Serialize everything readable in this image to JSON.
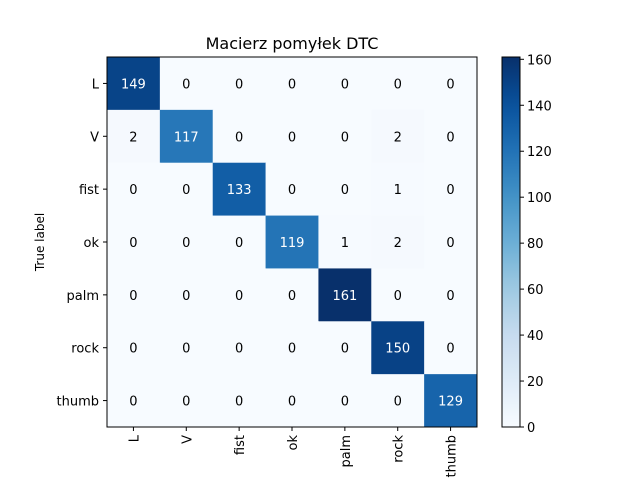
{
  "chart_data": {
    "type": "heatmap",
    "title": "Macierz pomyłek DTC",
    "xlabel": "",
    "ylabel": "True label",
    "row_labels": [
      "L",
      "V",
      "fist",
      "ok",
      "palm",
      "rock",
      "thumb"
    ],
    "col_labels": [
      "L",
      "V",
      "fist",
      "ok",
      "palm",
      "rock",
      "thumb"
    ],
    "values": [
      [
        149,
        0,
        0,
        0,
        0,
        0,
        0
      ],
      [
        2,
        117,
        0,
        0,
        0,
        2,
        0
      ],
      [
        0,
        0,
        133,
        0,
        0,
        1,
        0
      ],
      [
        0,
        0,
        0,
        119,
        1,
        2,
        0
      ],
      [
        0,
        0,
        0,
        0,
        161,
        0,
        0
      ],
      [
        0,
        0,
        0,
        0,
        0,
        150,
        0
      ],
      [
        0,
        0,
        0,
        0,
        0,
        0,
        129
      ]
    ],
    "colorbar": {
      "vmin": 0,
      "vmax": 161,
      "ticks": [
        0,
        20,
        40,
        60,
        80,
        100,
        120,
        140,
        160
      ]
    },
    "colormap": "Blues",
    "grid": false
  }
}
